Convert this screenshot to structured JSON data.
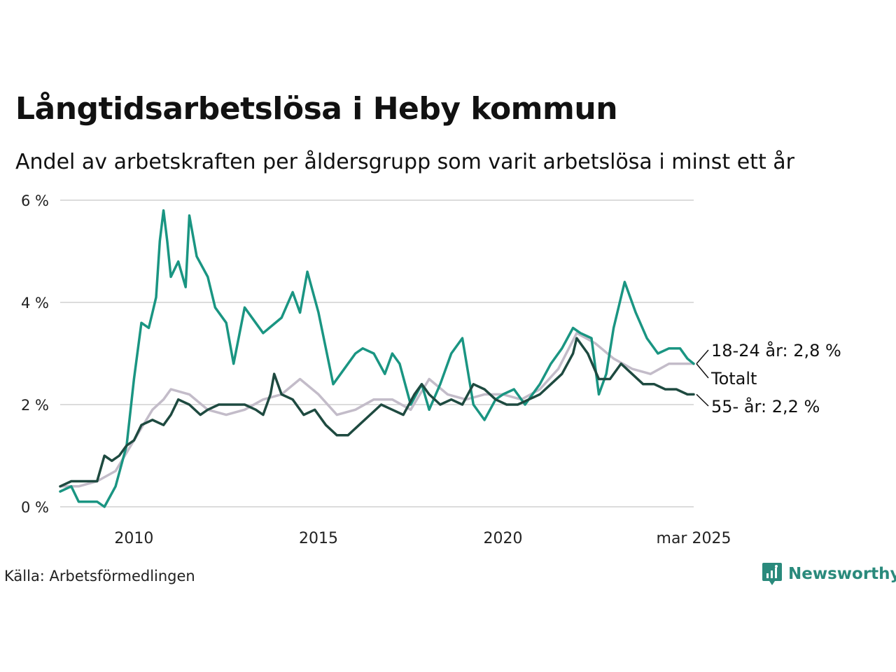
{
  "title": "Långtidsarbetslösa i Heby kommun",
  "subtitle": "Andel av arbetskraften per åldersgrupp som varit arbetslösa i minst ett år",
  "source": "Källa: Arbetsförmedlingen",
  "brand": {
    "name": "Newsworthy",
    "logo_icon": "bar-chart-icon",
    "color": "#2a8a7c"
  },
  "end_labels": [
    "18-24 år: 2,8 %",
    "Totalt",
    "55- år: 2,2 %"
  ],
  "chart_data": {
    "type": "line",
    "title": "Långtidsarbetslösa i Heby kommun",
    "subtitle": "Andel av arbetskraften per åldersgrupp som varit arbetslösa i minst ett år",
    "xlabel": "",
    "ylabel": "",
    "xlim": [
      2008.0,
      2025.17
    ],
    "ylim": [
      0,
      6
    ],
    "x_ticks": [
      2010,
      2015,
      2020,
      2025.17
    ],
    "x_tick_labels": [
      "2010",
      "2015",
      "2020",
      "mar 2025"
    ],
    "y_ticks": [
      0,
      2,
      4,
      6
    ],
    "y_tick_labels": [
      "0 %",
      "2 %",
      "4 %",
      "6 %"
    ],
    "grid": "horizontal",
    "series": [
      {
        "name": "Totalt",
        "color": "#c3bcc9",
        "x": [
          2008.0,
          2008.5,
          2009.0,
          2009.5,
          2010.0,
          2010.5,
          2010.8,
          2011.0,
          2011.5,
          2012.0,
          2012.5,
          2013.0,
          2013.5,
          2014.0,
          2014.5,
          2015.0,
          2015.5,
          2016.0,
          2016.5,
          2017.0,
          2017.5,
          2018.0,
          2018.5,
          2019.0,
          2019.5,
          2020.0,
          2020.5,
          2021.0,
          2021.5,
          2022.0,
          2022.5,
          2023.0,
          2023.5,
          2024.0,
          2024.5,
          2025.17
        ],
        "values": [
          0.4,
          0.4,
          0.5,
          0.7,
          1.3,
          1.9,
          2.1,
          2.3,
          2.2,
          1.9,
          1.8,
          1.9,
          2.1,
          2.2,
          2.5,
          2.2,
          1.8,
          1.9,
          2.1,
          2.1,
          1.9,
          2.5,
          2.2,
          2.1,
          2.2,
          2.2,
          2.1,
          2.3,
          2.7,
          3.4,
          3.2,
          2.9,
          2.7,
          2.6,
          2.8,
          2.8
        ]
      },
      {
        "name": "18-24 år",
        "color": "#1a9582",
        "x": [
          2008.0,
          2008.3,
          2008.5,
          2008.8,
          2009.0,
          2009.2,
          2009.5,
          2009.8,
          2010.0,
          2010.2,
          2010.4,
          2010.5,
          2010.6,
          2010.7,
          2010.8,
          2010.9,
          2011.0,
          2011.2,
          2011.4,
          2011.5,
          2011.7,
          2012.0,
          2012.2,
          2012.5,
          2012.7,
          2013.0,
          2013.5,
          2014.0,
          2014.3,
          2014.5,
          2014.7,
          2015.0,
          2015.2,
          2015.4,
          2015.6,
          2016.0,
          2016.2,
          2016.5,
          2016.8,
          2017.0,
          2017.2,
          2017.5,
          2017.8,
          2018.0,
          2018.3,
          2018.6,
          2018.9,
          2019.2,
          2019.5,
          2019.8,
          2020.0,
          2020.3,
          2020.6,
          2021.0,
          2021.3,
          2021.6,
          2021.9,
          2022.1,
          2022.4,
          2022.6,
          2022.8,
          2023.0,
          2023.3,
          2023.6,
          2023.9,
          2024.2,
          2024.5,
          2024.8,
          2025.0,
          2025.17
        ],
        "values": [
          0.3,
          0.4,
          0.1,
          0.1,
          0.1,
          0.0,
          0.4,
          1.2,
          2.5,
          3.6,
          3.5,
          3.8,
          4.1,
          5.2,
          5.8,
          5.2,
          4.5,
          4.8,
          4.3,
          5.7,
          4.9,
          4.5,
          3.9,
          3.6,
          2.8,
          3.9,
          3.4,
          3.7,
          4.2,
          3.8,
          4.6,
          3.8,
          3.1,
          2.4,
          2.6,
          3.0,
          3.1,
          3.0,
          2.6,
          3.0,
          2.8,
          2.0,
          2.4,
          1.9,
          2.4,
          3.0,
          3.3,
          2.0,
          1.7,
          2.1,
          2.2,
          2.3,
          2.0,
          2.4,
          2.8,
          3.1,
          3.5,
          3.4,
          3.3,
          2.2,
          2.6,
          3.5,
          4.4,
          3.8,
          3.3,
          3.0,
          3.1,
          3.1,
          2.9,
          2.8
        ]
      },
      {
        "name": "55- år",
        "color": "#1e4a40",
        "x": [
          2008.0,
          2008.3,
          2008.6,
          2009.0,
          2009.2,
          2009.4,
          2009.6,
          2009.8,
          2010.0,
          2010.2,
          2010.5,
          2010.8,
          2011.0,
          2011.2,
          2011.5,
          2011.8,
          2012.0,
          2012.3,
          2012.6,
          2013.0,
          2013.3,
          2013.5,
          2013.7,
          2013.8,
          2014.0,
          2014.3,
          2014.6,
          2014.9,
          2015.2,
          2015.5,
          2015.8,
          2016.1,
          2016.4,
          2016.7,
          2017.0,
          2017.3,
          2017.6,
          2017.8,
          2018.0,
          2018.3,
          2018.6,
          2018.9,
          2019.2,
          2019.5,
          2019.8,
          2020.1,
          2020.4,
          2020.7,
          2021.0,
          2021.3,
          2021.6,
          2021.9,
          2022.0,
          2022.3,
          2022.6,
          2022.9,
          2023.2,
          2023.5,
          2023.8,
          2024.1,
          2024.4,
          2024.7,
          2025.0,
          2025.17
        ],
        "values": [
          0.4,
          0.5,
          0.5,
          0.5,
          1.0,
          0.9,
          1.0,
          1.2,
          1.3,
          1.6,
          1.7,
          1.6,
          1.8,
          2.1,
          2.0,
          1.8,
          1.9,
          2.0,
          2.0,
          2.0,
          1.9,
          1.8,
          2.2,
          2.6,
          2.2,
          2.1,
          1.8,
          1.9,
          1.6,
          1.4,
          1.4,
          1.6,
          1.8,
          2.0,
          1.9,
          1.8,
          2.2,
          2.4,
          2.2,
          2.0,
          2.1,
          2.0,
          2.4,
          2.3,
          2.1,
          2.0,
          2.0,
          2.1,
          2.2,
          2.4,
          2.6,
          3.0,
          3.3,
          3.0,
          2.5,
          2.5,
          2.8,
          2.6,
          2.4,
          2.4,
          2.3,
          2.3,
          2.2,
          2.2
        ]
      }
    ]
  }
}
